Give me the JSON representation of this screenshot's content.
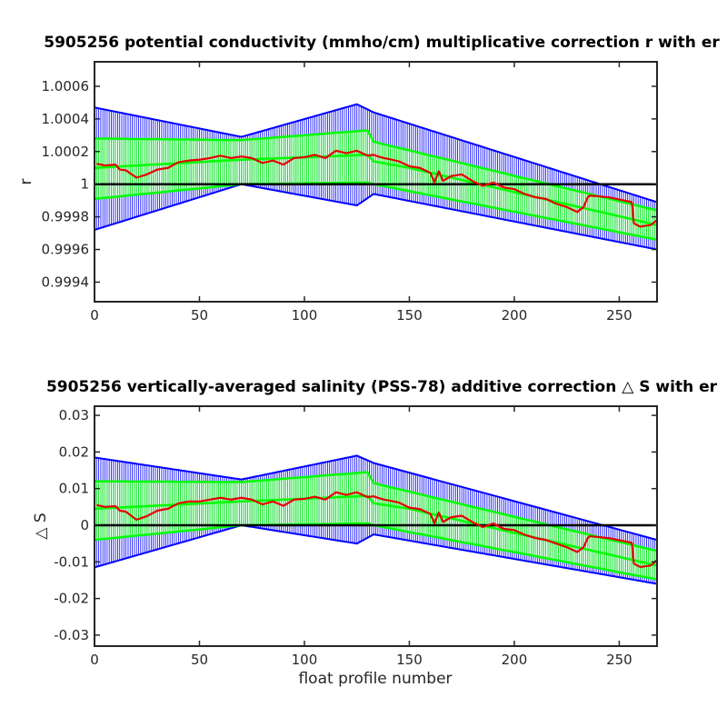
{
  "chart_data": [
    {
      "type": "line",
      "title": "5905256 potential conductivity (mmho/cm) multiplicative correction r with er",
      "xlabel": "",
      "ylabel": "r",
      "xlim": [
        0,
        268
      ],
      "ylim": [
        0.99928,
        1.00075
      ],
      "xticks": [
        "0",
        "50",
        "100",
        "150",
        "200",
        "250"
      ],
      "yticks": [
        "0.9994",
        "0.9996",
        "0.9998",
        "1",
        "1.0002",
        "1.0004",
        "1.0006"
      ],
      "grid": false,
      "reference_line": 1.0,
      "colors": {
        "correction": "#e60000",
        "inner_error": "#00ff00",
        "outer_error": "#0000ff",
        "reference": "#000000"
      },
      "series": [
        {
          "role": "correction",
          "x": [
            1,
            5,
            10,
            12,
            15,
            20,
            25,
            30,
            35,
            40,
            45,
            50,
            55,
            60,
            65,
            70,
            75,
            80,
            85,
            90,
            95,
            100,
            105,
            110,
            115,
            120,
            125,
            130,
            133,
            135,
            138,
            140,
            145,
            150,
            155,
            160,
            162,
            164,
            166,
            170,
            175,
            180,
            185,
            190,
            195,
            200,
            205,
            210,
            215,
            220,
            225,
            230,
            233,
            235,
            236,
            245,
            256,
            257,
            260,
            265,
            268
          ],
          "y": [
            1.000125,
            1.000115,
            1.00012,
            1.00009,
            1.000085,
            1.00004,
            1.00006,
            1.00009,
            1.0001,
            1.000135,
            1.000145,
            1.00015,
            1.00016,
            1.000175,
            1.00016,
            1.00017,
            1.00016,
            1.00013,
            1.000145,
            1.00012,
            1.00016,
            1.000165,
            1.00018,
            1.00016,
            1.000205,
            1.00019,
            1.000205,
            1.000175,
            1.00018,
            1.00017,
            1.00016,
            1.000155,
            1.00014,
            1.00011,
            1.0001,
            1.00007,
            1.00001,
            1.00008,
            1.00002,
            1.00005,
            1.00006,
            1.00002,
            0.99999,
            1.00001,
            0.99998,
            0.99997,
            0.99994,
            0.99992,
            0.99991,
            0.99988,
            0.99986,
            0.99983,
            0.99986,
            0.99992,
            0.99993,
            0.99992,
            0.99989,
            0.99976,
            0.99974,
            0.99975,
            0.99978
          ]
        },
        {
          "role": "inner-error-mid",
          "x": [
            0,
            70,
            130,
            133,
            150,
            268
          ],
          "y": [
            1.0001,
            1.00015,
            1.00018,
            1.00014,
            1.0001,
            0.99975
          ]
        },
        {
          "role": "inner-error-upper",
          "x": [
            0,
            70,
            130,
            133,
            268
          ],
          "y": [
            1.00028,
            1.00027,
            1.00033,
            1.00026,
            0.99984
          ]
        },
        {
          "role": "inner-error-lower",
          "x": [
            0,
            70,
            130,
            133,
            268
          ],
          "y": [
            0.99991,
            1.0,
            1.00001,
            1.0,
            0.99966
          ]
        },
        {
          "role": "outer-error-upper",
          "x": [
            0,
            70,
            125,
            133,
            268
          ],
          "y": [
            1.00047,
            1.00029,
            1.00049,
            1.00044,
            0.99989
          ]
        },
        {
          "role": "outer-error-lower",
          "x": [
            0,
            70,
            125,
            133,
            268
          ],
          "y": [
            0.99972,
            1.0,
            0.99987,
            0.99994,
            0.9996
          ]
        }
      ]
    },
    {
      "type": "line",
      "title": "5905256 vertically-averaged salinity (PSS-78) additive correction △ S with er",
      "xlabel": "float profile number",
      "ylabel": "△ S",
      "xlim": [
        0,
        268
      ],
      "ylim": [
        -0.033,
        0.0325
      ],
      "xticks": [
        "0",
        "50",
        "100",
        "150",
        "200",
        "250"
      ],
      "yticks": [
        "-0.03",
        "-0.02",
        "-0.01",
        "0",
        "0.01",
        "0.02",
        "0.03"
      ],
      "grid": false,
      "reference_line": 0,
      "colors": {
        "correction": "#e60000",
        "inner_error": "#00ff00",
        "outer_error": "#0000ff",
        "reference": "#000000"
      },
      "series": [
        {
          "role": "correction",
          "x": [
            1,
            5,
            10,
            12,
            15,
            20,
            25,
            30,
            35,
            40,
            45,
            50,
            55,
            60,
            65,
            70,
            75,
            80,
            85,
            90,
            95,
            100,
            105,
            110,
            115,
            120,
            125,
            130,
            133,
            135,
            138,
            140,
            145,
            150,
            155,
            160,
            162,
            164,
            166,
            170,
            175,
            180,
            185,
            190,
            195,
            200,
            205,
            210,
            215,
            220,
            225,
            230,
            233,
            235,
            236,
            245,
            256,
            257,
            260,
            265,
            268
          ],
          "y": [
            0.0055,
            0.005,
            0.0052,
            0.004,
            0.0037,
            0.0015,
            0.0025,
            0.004,
            0.0045,
            0.006,
            0.0065,
            0.0065,
            0.007,
            0.0075,
            0.007,
            0.0075,
            0.007,
            0.0057,
            0.0065,
            0.0053,
            0.007,
            0.0072,
            0.0078,
            0.007,
            0.009,
            0.0083,
            0.009,
            0.0077,
            0.0079,
            0.0075,
            0.007,
            0.0068,
            0.0062,
            0.0048,
            0.0044,
            0.0031,
            0.0005,
            0.0035,
            0.0009,
            0.0022,
            0.0026,
            0.0009,
            -0.0005,
            0.0005,
            -0.001,
            -0.0013,
            -0.0026,
            -0.0035,
            -0.004,
            -0.005,
            -0.006,
            -0.0073,
            -0.006,
            -0.0035,
            -0.003,
            -0.0035,
            -0.0048,
            -0.0105,
            -0.0114,
            -0.011,
            -0.0095
          ]
        },
        {
          "role": "inner-error-mid",
          "x": [
            0,
            70,
            130,
            133,
            150,
            268
          ],
          "y": [
            0.0045,
            0.0065,
            0.008,
            0.006,
            0.0045,
            -0.011
          ]
        },
        {
          "role": "inner-error-upper",
          "x": [
            0,
            70,
            130,
            133,
            268
          ],
          "y": [
            0.012,
            0.0118,
            0.0145,
            0.0115,
            -0.007
          ]
        },
        {
          "role": "inner-error-lower",
          "x": [
            0,
            70,
            130,
            133,
            268
          ],
          "y": [
            -0.004,
            0.0,
            0.0005,
            0.0,
            -0.0148
          ]
        },
        {
          "role": "outer-error-upper",
          "x": [
            0,
            70,
            125,
            133,
            268
          ],
          "y": [
            0.0185,
            0.0125,
            0.019,
            0.017,
            -0.004
          ]
        },
        {
          "role": "outer-error-lower",
          "x": [
            0,
            70,
            125,
            133,
            268
          ],
          "y": [
            -0.0115,
            0.0,
            -0.005,
            -0.0025,
            -0.016
          ]
        }
      ]
    }
  ]
}
